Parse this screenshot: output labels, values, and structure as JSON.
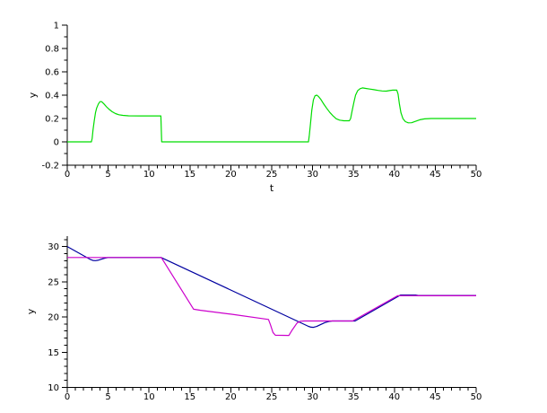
{
  "figure": {
    "background": "#ffffff",
    "axis_color": "#000000"
  },
  "chart_data": [
    {
      "type": "line",
      "title": "",
      "xlabel": "t",
      "ylabel": "y",
      "xlim": [
        0,
        50
      ],
      "ylim": [
        -0.2,
        1
      ],
      "xticks": [
        0,
        5,
        10,
        15,
        20,
        25,
        30,
        35,
        40,
        45,
        50
      ],
      "x_minor_step": 1,
      "yticks": [
        -0.2,
        0,
        0.2,
        0.4,
        0.6,
        0.8,
        1
      ],
      "y_minor_step": 0.1,
      "grid": false,
      "legend": null,
      "series": [
        {
          "name": "green-line",
          "color": "#00dd00",
          "points": [
            [
              0,
              0
            ],
            [
              2.95,
              0
            ],
            [
              3.05,
              0.03
            ],
            [
              3.15,
              0.1
            ],
            [
              3.3,
              0.18
            ],
            [
              3.45,
              0.25
            ],
            [
              3.6,
              0.29
            ],
            [
              3.8,
              0.325
            ],
            [
              4.0,
              0.345
            ],
            [
              4.2,
              0.345
            ],
            [
              4.5,
              0.325
            ],
            [
              4.8,
              0.3
            ],
            [
              5.1,
              0.28
            ],
            [
              5.5,
              0.258
            ],
            [
              5.9,
              0.242
            ],
            [
              6.3,
              0.232
            ],
            [
              6.8,
              0.227
            ],
            [
              7.5,
              0.223
            ],
            [
              9,
              0.222
            ],
            [
              11.45,
              0.222
            ],
            [
              11.55,
              0
            ],
            [
              29.5,
              0
            ],
            [
              29.6,
              0.06
            ],
            [
              29.75,
              0.16
            ],
            [
              29.9,
              0.27
            ],
            [
              30.1,
              0.36
            ],
            [
              30.3,
              0.395
            ],
            [
              30.5,
              0.4
            ],
            [
              30.7,
              0.39
            ],
            [
              31,
              0.365
            ],
            [
              31.3,
              0.33
            ],
            [
              31.7,
              0.29
            ],
            [
              32.1,
              0.252
            ],
            [
              32.5,
              0.222
            ],
            [
              32.9,
              0.198
            ],
            [
              33.3,
              0.186
            ],
            [
              33.8,
              0.181
            ],
            [
              34.5,
              0.181
            ],
            [
              34.65,
              0.2
            ],
            [
              34.85,
              0.27
            ],
            [
              35.05,
              0.34
            ],
            [
              35.25,
              0.4
            ],
            [
              35.5,
              0.438
            ],
            [
              35.8,
              0.455
            ],
            [
              36.1,
              0.462
            ],
            [
              36.5,
              0.458
            ],
            [
              37,
              0.452
            ],
            [
              37.5,
              0.447
            ],
            [
              38,
              0.441
            ],
            [
              38.5,
              0.436
            ],
            [
              39,
              0.435
            ],
            [
              39.4,
              0.439
            ],
            [
              39.8,
              0.443
            ],
            [
              40.3,
              0.443
            ],
            [
              40.45,
              0.41
            ],
            [
              40.6,
              0.33
            ],
            [
              40.8,
              0.25
            ],
            [
              41.05,
              0.198
            ],
            [
              41.35,
              0.173
            ],
            [
              41.7,
              0.163
            ],
            [
              42.1,
              0.164
            ],
            [
              42.6,
              0.176
            ],
            [
              43.1,
              0.189
            ],
            [
              43.7,
              0.197
            ],
            [
              44.5,
              0.2
            ],
            [
              50,
              0.2
            ]
          ]
        }
      ]
    },
    {
      "type": "line",
      "title": "",
      "xlabel": "",
      "ylabel": "y",
      "xlim": [
        0,
        50
      ],
      "ylim": [
        10,
        30
      ],
      "xticks": [
        0,
        5,
        10,
        15,
        20,
        25,
        30,
        35,
        40,
        45,
        50
      ],
      "x_minor_step": 1,
      "yticks": [
        10,
        15,
        20,
        25,
        30
      ],
      "y_minor_step": 1,
      "grid": false,
      "legend": null,
      "series": [
        {
          "name": "blue-line",
          "color": "#0000a0",
          "points": [
            [
              0,
              30
            ],
            [
              2.85,
              28.15
            ],
            [
              3.15,
              28.03
            ],
            [
              3.45,
              28.0
            ],
            [
              3.75,
              28.05
            ],
            [
              4.05,
              28.15
            ],
            [
              4.35,
              28.27
            ],
            [
              4.65,
              28.37
            ],
            [
              4.95,
              28.43
            ],
            [
              11.5,
              28.43
            ],
            [
              29.5,
              18.67
            ],
            [
              29.8,
              18.55
            ],
            [
              30.1,
              18.53
            ],
            [
              30.5,
              18.65
            ],
            [
              31,
              18.93
            ],
            [
              31.5,
              19.2
            ],
            [
              32,
              19.37
            ],
            [
              32.4,
              19.43
            ],
            [
              35.2,
              19.43
            ],
            [
              40.75,
              23.12
            ],
            [
              42.6,
              23.12
            ],
            [
              42.9,
              23.05
            ],
            [
              50,
              23.05
            ]
          ]
        },
        {
          "name": "magenta-line",
          "color": "#cc00cc",
          "points": [
            [
              0,
              28.45
            ],
            [
              11.5,
              28.45
            ],
            [
              15.45,
              21.1
            ],
            [
              16.3,
              20.95
            ],
            [
              20,
              20.4
            ],
            [
              24.6,
              19.65
            ],
            [
              24.85,
              18.9
            ],
            [
              25.15,
              17.8
            ],
            [
              25.45,
              17.4
            ],
            [
              27.1,
              17.38
            ],
            [
              27.5,
              18.15
            ],
            [
              28.1,
              19.15
            ],
            [
              28.5,
              19.4
            ],
            [
              29,
              19.43
            ],
            [
              34.9,
              19.43
            ],
            [
              40.4,
              23.02
            ],
            [
              50,
              23.02
            ]
          ]
        }
      ]
    }
  ]
}
